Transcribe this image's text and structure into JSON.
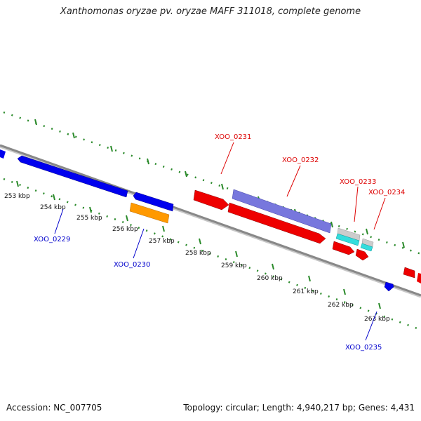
{
  "title": "Xanthomonas oryzae pv. oryzae MAFF 311018, complete genome",
  "footer": {
    "accession": "Accession: NC_007705",
    "summary": "Topology: circular; Length: 4,940,217 bp; Genes: 4,431"
  },
  "ticks": [
    "253 kbp",
    "254 kbp",
    "255 kbp",
    "256 kbp",
    "257 kbp",
    "258 kbp",
    "259 kbp",
    "260 kbp",
    "261 kbp",
    "262 kbp",
    "263 kbp"
  ],
  "genes": [
    {
      "label": "XOO_0229",
      "color": "#0000cc"
    },
    {
      "label": "XOO_0230",
      "color": "#0000cc"
    },
    {
      "label": "XOO_0231",
      "color": "#dd0000"
    },
    {
      "label": "XOO_0232",
      "color": "#dd0000"
    },
    {
      "label": "XOO_0233",
      "color": "#dd0000"
    },
    {
      "label": "XOO_0234",
      "color": "#dd0000"
    },
    {
      "label": "XOO_0235",
      "color": "#0000cc"
    }
  ],
  "colors": {
    "backbone": "#888888",
    "tick_marks": "#2a8a2a",
    "blue_gene": "#0000ee",
    "red_gene": "#ee0000",
    "orange_gene": "#ff9900",
    "purple_gene": "#7777dd",
    "cyan_gene": "#33dddd",
    "gray_gene": "#cccccc"
  }
}
